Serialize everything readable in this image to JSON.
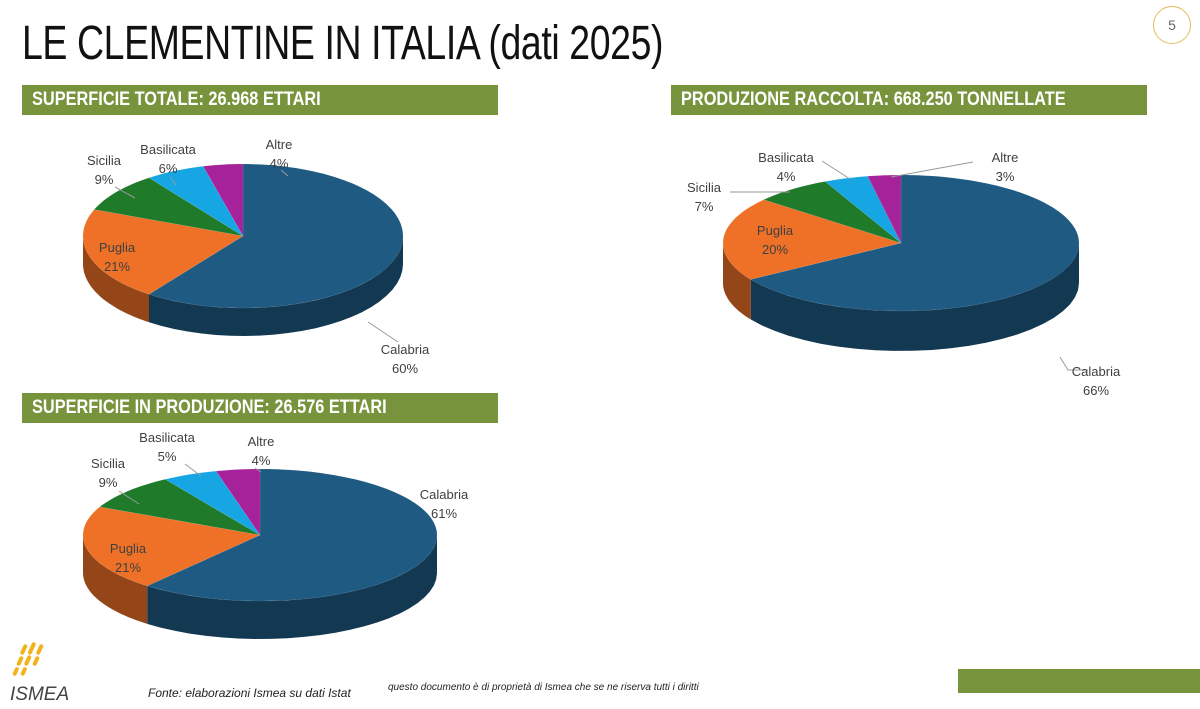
{
  "page": {
    "title": "LE CLEMENTINE IN ITALIA (dati 2025)",
    "number": "5"
  },
  "footer": {
    "source": "Fonte: elaborazioni Ismea su dati Istat",
    "rights": "questo documento è di proprietà di Ismea che se ne riserva tutti i diritti",
    "logo_text": "ISMEA"
  },
  "colors": {
    "band": "#77933c",
    "Calabria": "#1f5a82",
    "Puglia": "#ee7127",
    "Sicilia": "#1f7a2a",
    "Basilicata": "#16a6e3",
    "Altre": "#a6229a"
  },
  "chart_data": [
    {
      "type": "pie",
      "title": "SUPERFICIE TOTALE: 26.968 ETTARI",
      "slices": [
        {
          "label": "Calabria",
          "value": 60,
          "value_label": "60%"
        },
        {
          "label": "Puglia",
          "value": 21,
          "value_label": "21%"
        },
        {
          "label": "Sicilia",
          "value": 9,
          "value_label": "9%"
        },
        {
          "label": "Basilicata",
          "value": 6,
          "value_label": "6%"
        },
        {
          "label": "Altre",
          "value": 4,
          "value_label": "4%"
        }
      ]
    },
    {
      "type": "pie",
      "title": "PRODUZIONE RACCOLTA: 668.250 TONNELLATE",
      "slices": [
        {
          "label": "Calabria",
          "value": 66,
          "value_label": "66%"
        },
        {
          "label": "Puglia",
          "value": 20,
          "value_label": "20%"
        },
        {
          "label": "Sicilia",
          "value": 7,
          "value_label": "7%"
        },
        {
          "label": "Basilicata",
          "value": 4,
          "value_label": "4%"
        },
        {
          "label": "Altre",
          "value": 3,
          "value_label": "3%"
        }
      ]
    },
    {
      "type": "pie",
      "title": "SUPERFICIE IN PRODUZIONE: 26.576 ETTARI",
      "slices": [
        {
          "label": "Calabria",
          "value": 61,
          "value_label": "61%"
        },
        {
          "label": "Puglia",
          "value": 21,
          "value_label": "21%"
        },
        {
          "label": "Sicilia",
          "value": 9,
          "value_label": "9%"
        },
        {
          "label": "Basilicata",
          "value": 5,
          "value_label": "5%"
        },
        {
          "label": "Altre",
          "value": 4,
          "value_label": "4%"
        }
      ]
    }
  ]
}
